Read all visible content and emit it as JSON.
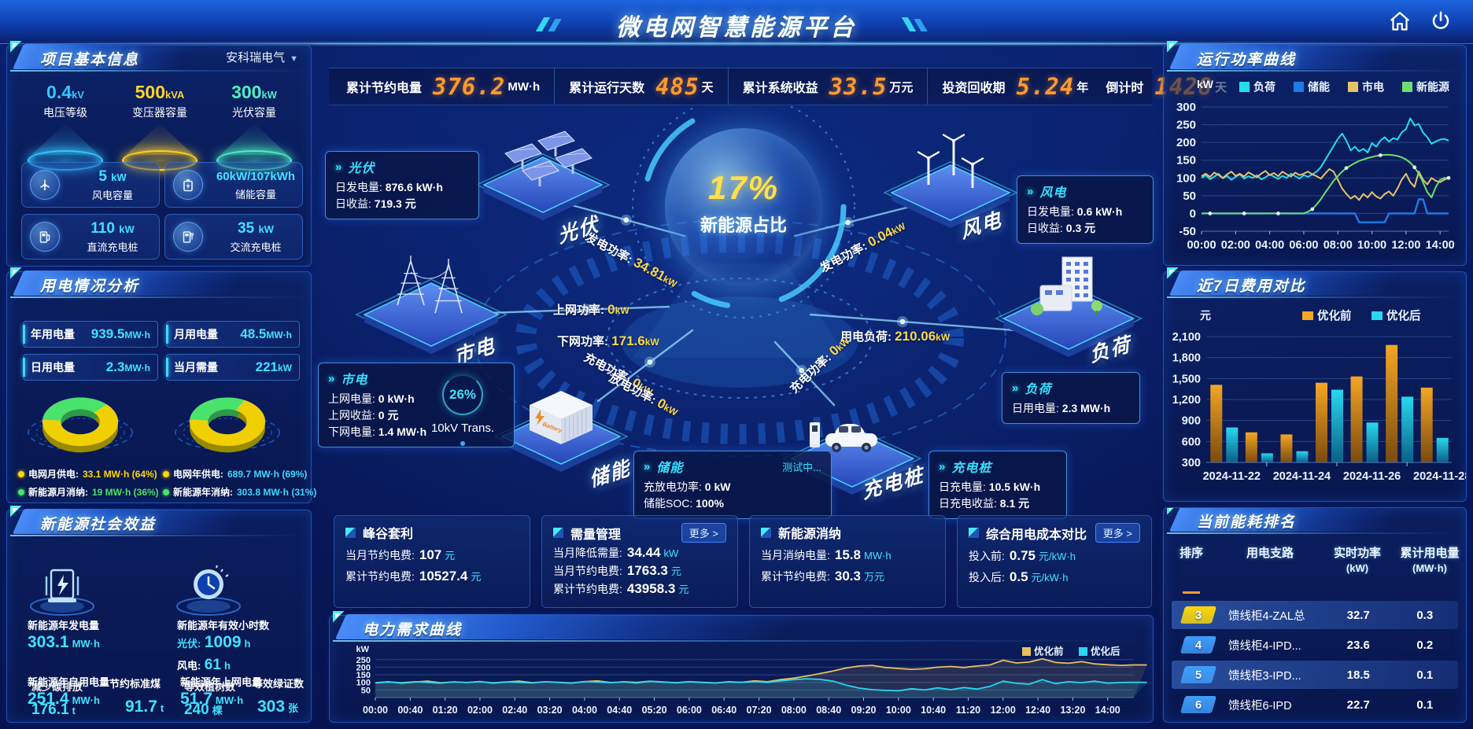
{
  "title": "微电网智慧能源平台",
  "project_info": {
    "panel_title": "项目基本信息",
    "company": "安科瑞电气",
    "spotlights": [
      {
        "value": "0.4",
        "unit": "kV",
        "label": "电压等级",
        "color": "#35c8ff"
      },
      {
        "value": "500",
        "unit": "kVA",
        "label": "变压器容量",
        "color": "#ffd32b"
      },
      {
        "value": "300",
        "unit": "kW",
        "label": "光伏容量",
        "color": "#4ef0c0"
      }
    ],
    "capacity_cards": [
      {
        "icon": "wind-turbine-icon",
        "value": "5",
        "unit": "kW",
        "label": "风电容量"
      },
      {
        "icon": "battery-icon",
        "value": "60kW/107kWh",
        "unit": "",
        "label": "储能容量"
      },
      {
        "icon": "dc-charger-icon",
        "value": "110",
        "unit": "kW",
        "label": "直流充电桩"
      },
      {
        "icon": "ac-charger-icon",
        "value": "35",
        "unit": "kW",
        "label": "交流充电桩"
      }
    ]
  },
  "usage_analysis": {
    "panel_title": "用电情况分析",
    "stats": [
      {
        "label": "年用电量",
        "value": "939.5",
        "unit": "MW·h"
      },
      {
        "label": "月用电量",
        "value": "48.5",
        "unit": "MW·h"
      },
      {
        "label": "日用电量",
        "value": "2.3",
        "unit": "MW·h"
      },
      {
        "label": "当月需量",
        "value": "221",
        "unit": "kW"
      }
    ],
    "legend_month": [
      {
        "label": "电网月供电:",
        "value": "33.1 MW·h (64%)",
        "color": "#ffd800"
      },
      {
        "label": "新能源月消纳:",
        "value": "19 MW·h (36%)",
        "color": "#49e36c"
      }
    ],
    "legend_year": [
      {
        "label": "电网年供电:",
        "value": "689.7 MW·h (69%)",
        "color": "#ffd800"
      },
      {
        "label": "新能源年消纳:",
        "value": "303.8 MW·h (31%)",
        "color": "#49e36c"
      }
    ]
  },
  "social_benefit": {
    "panel_title": "新能源社会效益",
    "gen": {
      "label": "新能源年发电量",
      "value": "303.1",
      "unit": "MW·h"
    },
    "hours": {
      "label": "新能源年有效小时数",
      "pv_label": "光伏:",
      "pv_value": "1009",
      "pv_unit": "h",
      "wind_label": "风电:",
      "wind_value": "61",
      "wind_unit": "h"
    },
    "row_a": {
      "label1": "新能源年自用电量",
      "value1": "251.4",
      "unit1": "MW·h",
      "label2": "减少碳排放",
      "value2": "176.1",
      "unit2": "t",
      "label3": "节约标准煤",
      "value3": "91.7",
      "unit3": "t"
    },
    "row_b": {
      "label1": "新能源年上网电量",
      "value1": "51.7",
      "unit1": "MW·h",
      "label2": "等效植树数",
      "value2": "240",
      "unit2": "棵",
      "label3": "等效绿证数",
      "value3": "303",
      "unit3": "张"
    }
  },
  "kpi_bar": [
    {
      "label": "累计节约电量",
      "value": "376.2",
      "unit": "MW·h"
    },
    {
      "label": "累计运行天数",
      "value": "485",
      "unit": "天"
    },
    {
      "label": "累计系统收益",
      "value": "33.5",
      "unit": "万元"
    },
    {
      "label": "投资回收期",
      "value": "5.24",
      "unit": "年",
      "label2": "倒计时",
      "value2": "1428",
      "unit2": "天"
    }
  ],
  "center": {
    "percent": "17%",
    "percent_label": "新能源占比",
    "nodes": [
      "光伏",
      "风电",
      "市电",
      "储能",
      "充电桩",
      "负荷"
    ],
    "transformer": {
      "pct": "26%",
      "label": "10kV Trans."
    },
    "cards": [
      {
        "id": "pv",
        "title": "光伏",
        "rows": [
          {
            "label": "日发电量:",
            "value": "876.6 kW·h"
          },
          {
            "label": "日收益:",
            "value": "719.3 元"
          }
        ]
      },
      {
        "id": "wind",
        "title": "风电",
        "rows": [
          {
            "label": "日发电量:",
            "value": "0.6 kW·h"
          },
          {
            "label": "日收益:",
            "value": "0.3 元"
          }
        ]
      },
      {
        "id": "grid",
        "title": "市电",
        "rows": [
          {
            "label": "上网电量:",
            "value": "0 kW·h"
          },
          {
            "label": "上网收益:",
            "value": "0 元"
          },
          {
            "label": "下网电量:",
            "value": "1.4 MW·h"
          }
        ]
      },
      {
        "id": "storage",
        "title": "储能",
        "tag": "测试中...",
        "rows": [
          {
            "label": "充放电功率:",
            "value": "0 kW"
          },
          {
            "label": "储能SOC:",
            "value": "100%"
          }
        ]
      },
      {
        "id": "load",
        "title": "负荷",
        "rows": [
          {
            "label": "日用电量:",
            "value": "2.3 MW·h"
          }
        ]
      },
      {
        "id": "charger",
        "title": "充电桩",
        "rows": [
          {
            "label": "日充电量:",
            "value": "10.5 kW·h"
          },
          {
            "label": "日充电收益:",
            "value": "8.1 元"
          }
        ]
      }
    ],
    "flows": [
      {
        "label": "发电功率:",
        "value": "34.81",
        "unit": "kW"
      },
      {
        "label": "上网功率:",
        "value": "0",
        "unit": "kW"
      },
      {
        "label": "下网功率:",
        "value": "171.6",
        "unit": "kW"
      },
      {
        "label": "发电功率:",
        "value": "0.04",
        "unit": "kW"
      },
      {
        "label": "用电负荷:",
        "value": "210.06",
        "unit": "kW"
      },
      {
        "label": "充电功率:",
        "value": "0",
        "unit": "kW"
      },
      {
        "label": "充电功率:",
        "value": "0",
        "unit": "kW"
      },
      {
        "label": "放电功率:",
        "value": "0",
        "unit": "kW"
      }
    ]
  },
  "benefit_cards": [
    {
      "title": "峰谷套利",
      "more": null,
      "rows": [
        {
          "label": "当月节约电费:",
          "value": "107",
          "unit": "元"
        },
        {
          "label": "累计节约电费:",
          "value": "10527.4",
          "unit": "元"
        }
      ]
    },
    {
      "title": "需量管理",
      "more": "更多 >",
      "rows": [
        {
          "label": "当月降低需量:",
          "value": "34.44",
          "unit": "kW"
        },
        {
          "label": "当月节约电费:",
          "value": "1763.3",
          "unit": "元"
        },
        {
          "label": "累计节约电费:",
          "value": "43958.3",
          "unit": "元"
        }
      ]
    },
    {
      "title": "新能源消纳",
      "more": null,
      "rows": [
        {
          "label": "当月消纳电量:",
          "value": "15.8",
          "unit": "MW·h"
        },
        {
          "label": "累计节约电费:",
          "value": "30.3",
          "unit": "万元"
        }
      ]
    },
    {
      "title": "综合用电成本对比",
      "more": "更多 >",
      "rows": [
        {
          "label": "投入前:",
          "value": "0.75",
          "unit": "元/kW·h"
        },
        {
          "label": "投入后:",
          "value": "0.5",
          "unit": "元/kW·h"
        }
      ]
    }
  ],
  "panel_titles": {
    "demand": "电力需求曲线",
    "power": "运行功率曲线",
    "cost": "近7日费用对比",
    "ranking": "当前能耗排名"
  },
  "chart_data": [
    {
      "id": "power_curve",
      "type": "line",
      "title": "运行功率曲线",
      "ylabel": "kW",
      "ylim": [
        -50,
        300
      ],
      "yticks": [
        -50,
        0,
        50,
        100,
        150,
        200,
        250,
        300
      ],
      "xticks": [
        "00:00",
        "02:00",
        "04:00",
        "06:00",
        "08:00",
        "10:00",
        "12:00",
        "14:00"
      ],
      "x_hours_max": 14.5,
      "legend_position": "top",
      "series": [
        {
          "name": "负荷",
          "color": "#24dcec",
          "values": [
            100,
            108,
            96,
            104,
            112,
            99,
            106,
            95,
            103,
            110,
            98,
            105,
            100,
            108,
            96,
            102,
            110,
            104,
            97,
            106,
            100,
            112,
            105,
            98,
            108,
            103,
            110,
            118,
            130,
            150,
            170,
            190,
            210,
            225,
            205,
            178,
            188,
            175,
            182,
            172,
            198,
            188,
            205,
            215,
            202,
            212,
            208,
            228,
            238,
            268,
            248,
            252,
            228,
            215,
            196,
            203,
            208,
            210,
            205
          ]
        },
        {
          "name": "储能",
          "color": "#1e7ce8",
          "values": [
            0,
            0,
            0,
            0,
            0,
            0,
            0,
            0,
            0,
            0,
            0,
            0,
            0,
            0,
            0,
            0,
            0,
            0,
            0,
            0,
            0,
            0,
            0,
            0,
            0,
            0,
            0,
            0,
            0,
            0,
            0,
            0,
            0,
            0,
            0,
            0,
            0,
            -25,
            -25,
            -25,
            -25,
            -25,
            -25,
            -25,
            0,
            0,
            0,
            0,
            0,
            0,
            0,
            40,
            40,
            0,
            0,
            0,
            0,
            0,
            0
          ]
        },
        {
          "name": "市电",
          "color": "#e6c468",
          "values": [
            105,
            112,
            103,
            115,
            108,
            100,
            110,
            118,
            106,
            112,
            104,
            116,
            109,
            102,
            112,
            120,
            108,
            114,
            105,
            118,
            110,
            104,
            115,
            108,
            112,
            118,
            110,
            105,
            98,
            112,
            125,
            118,
            95,
            70,
            55,
            42,
            50,
            38,
            55,
            45,
            60,
            48,
            42,
            55,
            62,
            50,
            70,
            95,
            112,
            88,
            75,
            118,
            95,
            82,
            100,
            92,
            88,
            95,
            100
          ]
        },
        {
          "name": "新能源",
          "color": "#6ce06e",
          "values": [
            0,
            0,
            0,
            0,
            0,
            0,
            0,
            0,
            0,
            0,
            0,
            0,
            0,
            0,
            0,
            0,
            0,
            0,
            0,
            0,
            0,
            0,
            0,
            0,
            0,
            5,
            12,
            25,
            40,
            58,
            75,
            92,
            105,
            118,
            128,
            135,
            142,
            148,
            152,
            156,
            159,
            162,
            164,
            165,
            165,
            164,
            162,
            158,
            152,
            143,
            130,
            112,
            88,
            60,
            45,
            75,
            95,
            100,
            100
          ]
        }
      ]
    },
    {
      "id": "cost_compare",
      "type": "bar",
      "title": "近7日费用对比",
      "ylabel": "元",
      "ylim": [
        300,
        2100
      ],
      "yticks": [
        300,
        600,
        900,
        1200,
        1500,
        1800,
        2100
      ],
      "ytick_labels": [
        "300",
        "600",
        "900",
        "1,200",
        "1,500",
        "1,800",
        "2,100"
      ],
      "categories": [
        "2024-11-22",
        "2024-11-23",
        "2024-11-24",
        "2024-11-25",
        "2024-11-26",
        "2024-11-27",
        "2024-11-28"
      ],
      "xtick_labels": [
        "2024-11-22",
        "2024-11-24",
        "2024-11-26",
        "2024-11-28"
      ],
      "legend_position": "top",
      "series": [
        {
          "name": "优化前",
          "color": "#f5a623",
          "color_dark": "#7a4a10",
          "values": [
            1410,
            730,
            700,
            1440,
            1530,
            1980,
            1370
          ]
        },
        {
          "name": "优化后",
          "color": "#27d8f0",
          "color_dark": "#0b5e86",
          "values": [
            800,
            430,
            460,
            1340,
            870,
            1240,
            650
          ]
        }
      ]
    },
    {
      "id": "demand_curve",
      "type": "line",
      "title": "电力需求曲线",
      "ylabel": "kW",
      "ylim": [
        0,
        280
      ],
      "yticks": [
        50,
        100,
        150,
        200,
        250
      ],
      "xticks": [
        "00:00",
        "00:40",
        "01:20",
        "02:00",
        "02:40",
        "03:20",
        "04:00",
        "04:40",
        "05:20",
        "06:00",
        "06:40",
        "07:20",
        "08:00",
        "08:40",
        "09:20",
        "10:00",
        "10:40",
        "11:20",
        "12:00",
        "12:40",
        "13:20",
        "14:00"
      ],
      "x_hours_max": 14.5,
      "legend_position": "top-right",
      "series": [
        {
          "name": "优化前",
          "color": "#e8c05a",
          "values": [
            98,
            104,
            95,
            102,
            108,
            97,
            103,
            99,
            106,
            95,
            102,
            108,
            98,
            104,
            100,
            96,
            105,
            110,
            99,
            103,
            97,
            107,
            102,
            98,
            105,
            100,
            96,
            104,
            100,
            110,
            104,
            118,
            128,
            142,
            158,
            175,
            195,
            208,
            212,
            198,
            192,
            186,
            190,
            200,
            205,
            198,
            208,
            215,
            246,
            228,
            234,
            255,
            232,
            226,
            237,
            222,
            216,
            212,
            215,
            215
          ]
        },
        {
          "name": "优化后",
          "color": "#2bd6ee",
          "values": [
            96,
            102,
            98,
            104,
            100,
            95,
            103,
            99,
            105,
            97,
            103,
            100,
            96,
            104,
            99,
            95,
            106,
            102,
            98,
            104,
            100,
            108,
            103,
            97,
            104,
            99,
            96,
            103,
            100,
            104,
            100,
            110,
            118,
            124,
            120,
            108,
            82,
            62,
            52,
            47,
            44,
            58,
            50,
            64,
            52,
            66,
            56,
            74,
            108,
            94,
            88,
            118,
            92,
            104,
            98,
            108,
            95,
            99,
            100,
            100
          ]
        }
      ]
    },
    {
      "id": "supply_month",
      "type": "pie",
      "slices": [
        {
          "label": "电网月供电",
          "value_text": "33.1 MW·h",
          "pct": 64,
          "color": "#f0d000"
        },
        {
          "label": "新能源月消纳",
          "value_text": "19 MW·h",
          "pct": 36,
          "color": "#49e36c"
        }
      ]
    },
    {
      "id": "supply_year",
      "type": "pie",
      "slices": [
        {
          "label": "电网年供电",
          "value_text": "689.7 MW·h",
          "pct": 69,
          "color": "#f0d000"
        },
        {
          "label": "新能源年消纳",
          "value_text": "303.8 MW·h",
          "pct": 31,
          "color": "#49e36c"
        }
      ]
    }
  ],
  "ranking": {
    "panel_title": "当前能耗排名",
    "columns": [
      {
        "t": "排序",
        "sub": ""
      },
      {
        "t": "用电支路",
        "sub": ""
      },
      {
        "t": "实时功率",
        "sub": "(kW)"
      },
      {
        "t": "累计用电量",
        "sub": "(MW·h)"
      }
    ],
    "rows": [
      {
        "rank": "3",
        "badge_color": "#ffd80a",
        "name": "馈线柜4-ZAL总",
        "power": "32.7",
        "energy": "0.3",
        "highlight": true
      },
      {
        "rank": "4",
        "badge_color": "#3f9efc",
        "name": "馈线柜4-IPD...",
        "power": "23.6",
        "energy": "0.2",
        "highlight": false
      },
      {
        "rank": "5",
        "badge_color": "#3f9efc",
        "name": "馈线柜3-IPD...",
        "power": "18.5",
        "energy": "0.1",
        "highlight": true
      },
      {
        "rank": "6",
        "badge_color": "#3f9efc",
        "name": "馈线柜6-IPD",
        "power": "22.7",
        "energy": "0.1",
        "highlight": false
      }
    ]
  }
}
